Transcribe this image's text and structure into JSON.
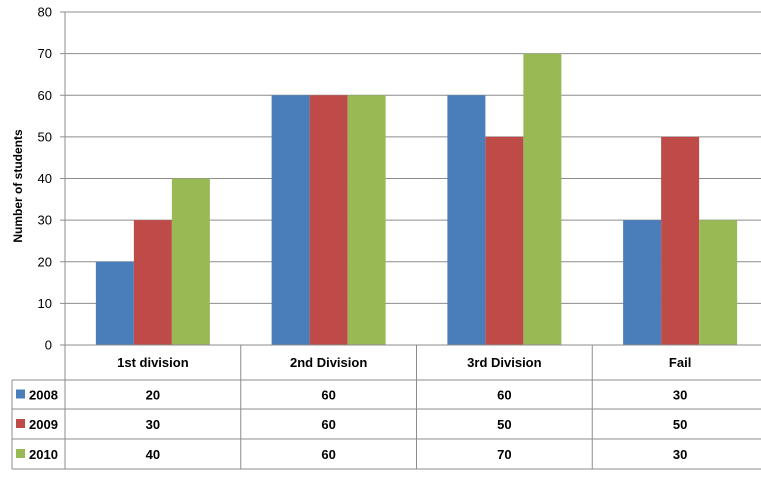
{
  "chart_data": {
    "type": "bar",
    "title": "",
    "xlabel": "",
    "ylabel": "Number of students",
    "ylim": [
      0,
      80
    ],
    "yticks": [
      0,
      10,
      20,
      30,
      40,
      50,
      60,
      70,
      80
    ],
    "grid": true,
    "legend": "data-table",
    "categories": [
      "1st division",
      "2nd Division",
      "3rd Division",
      "Fail"
    ],
    "series": [
      {
        "name": "2008",
        "color": "#4a7ebb",
        "values": [
          20,
          60,
          60,
          30
        ]
      },
      {
        "name": "2009",
        "color": "#be4b48",
        "values": [
          30,
          60,
          50,
          50
        ]
      },
      {
        "name": "2010",
        "color": "#98b954",
        "values": [
          40,
          60,
          70,
          30
        ]
      }
    ]
  }
}
